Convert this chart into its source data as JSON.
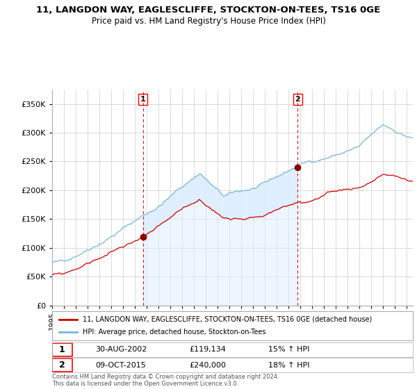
{
  "title_line1": "11, LANGDON WAY, EAGLESCLIFFE, STOCKTON-ON-TEES, TS16 0GE",
  "title_line2": "Price paid vs. HM Land Registry's House Price Index (HPI)",
  "ylabel_ticks": [
    "£0",
    "£50K",
    "£100K",
    "£150K",
    "£200K",
    "£250K",
    "£300K",
    "£350K"
  ],
  "ylim": [
    0,
    375000
  ],
  "xlim_start": 1995.0,
  "xlim_end": 2025.5,
  "sale1_date": 2002.67,
  "sale1_price": 119134,
  "sale1_label": "1",
  "sale2_date": 2015.77,
  "sale2_price": 240000,
  "sale2_label": "2",
  "hpi_color": "#7ab4d8",
  "price_color": "#cc0000",
  "fill_color": "#ddeeff",
  "legend_line1": "11, LANGDON WAY, EAGLESCLIFFE, STOCKTON-ON-TEES, TS16 0GE (detached house)",
  "legend_line2": "HPI: Average price, detached house, Stockton-on-Tees",
  "annotation1_date": "30-AUG-2002",
  "annotation1_price": "£119,134",
  "annotation1_hpi": "15% ↑ HPI",
  "annotation2_date": "09-OCT-2015",
  "annotation2_price": "£240,000",
  "annotation2_hpi": "18% ↑ HPI",
  "footer": "Contains HM Land Registry data © Crown copyright and database right 2024.\nThis data is licensed under the Open Government Licence v3.0.",
  "background_color": "#ffffff",
  "grid_color": "#cccccc"
}
